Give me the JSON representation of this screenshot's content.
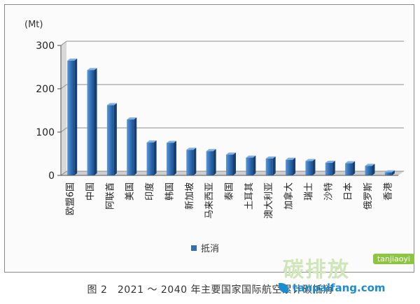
{
  "caption": "图 2　2021 ～ 2040 年主要国家国际航空累计碳抵消",
  "watermark": {
    "brand_cn": "碳排放",
    "badge": "tanjiaoyi",
    "url": "tanpaifang.com",
    "color": "#1a8dd0"
  },
  "chart_data": {
    "type": "bar",
    "title": "",
    "xlabel": "",
    "ylabel": "(Mt)",
    "ylim": [
      0,
      300
    ],
    "yticks": [
      0,
      100,
      200,
      300
    ],
    "grid": true,
    "legend_position": "bottom",
    "bar_color": "#2f6fb5",
    "categories": [
      "欧盟6国",
      "中国",
      "阿联酋",
      "美国",
      "印度",
      "韩国",
      "新加坡",
      "马来西亚",
      "泰国",
      "土耳其",
      "澳大利亚",
      "加拿大",
      "瑞士",
      "沙特",
      "日本",
      "俄罗斯",
      "香港"
    ],
    "series": [
      {
        "name": "抵消",
        "values": [
          265,
          243,
          162,
          129,
          76,
          75,
          59,
          56,
          48,
          41,
          39,
          36,
          33,
          29,
          28,
          22,
          7
        ]
      }
    ]
  }
}
